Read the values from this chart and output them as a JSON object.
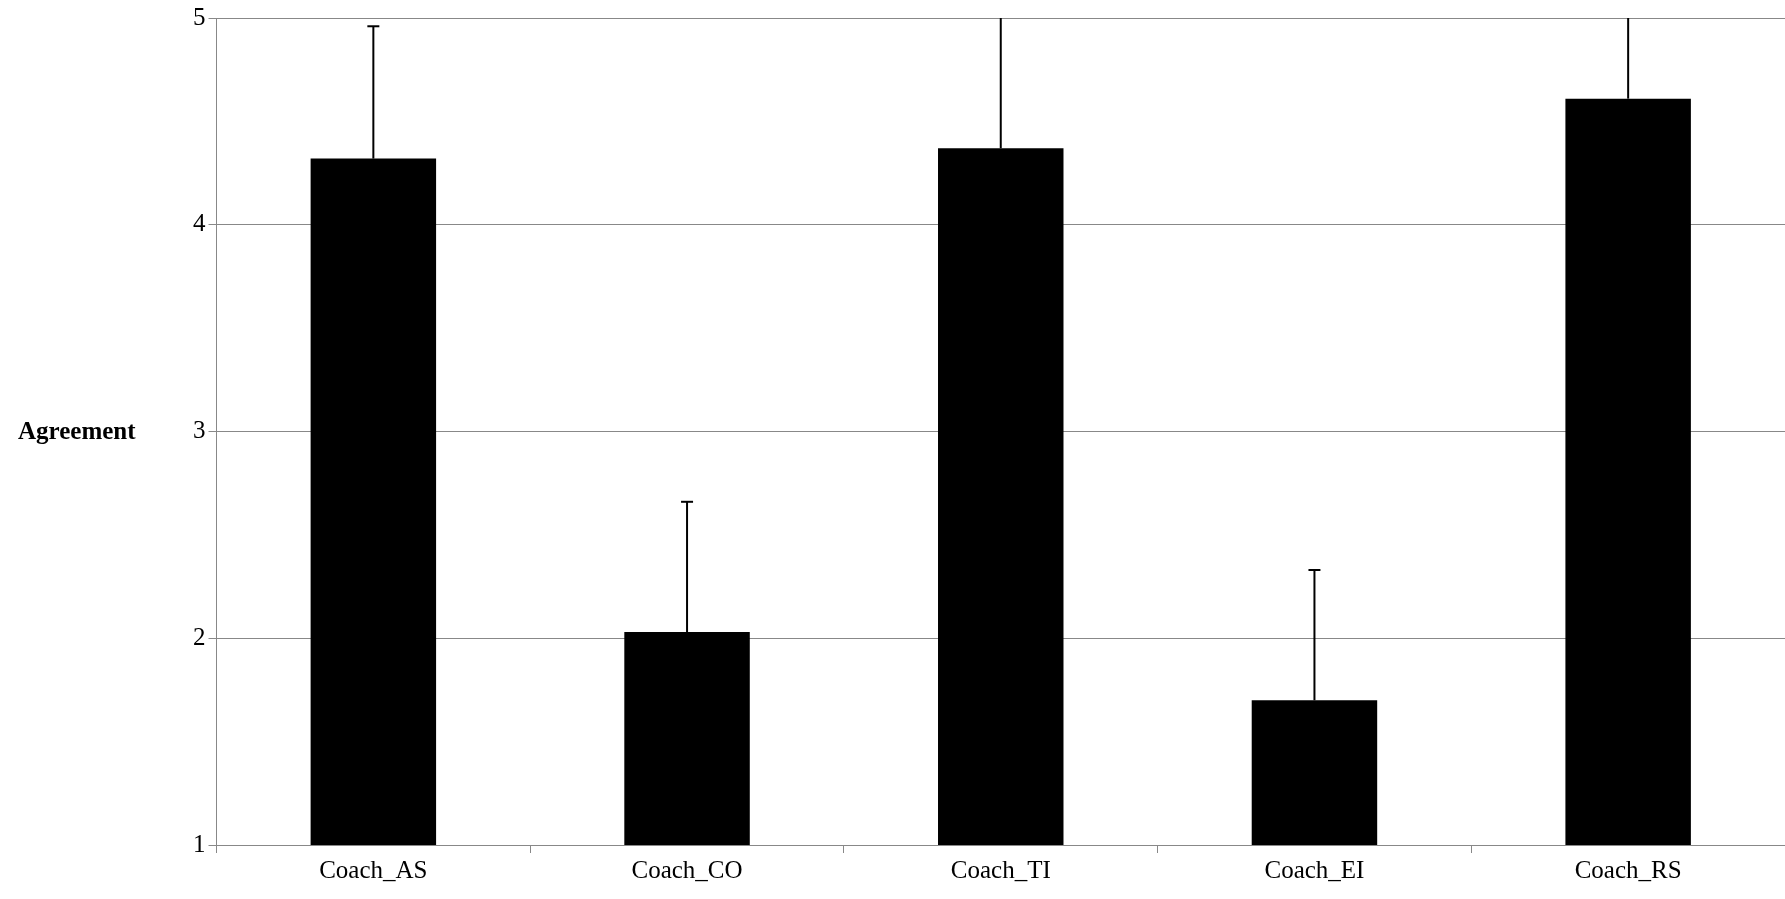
{
  "chart_data": {
    "type": "bar",
    "ylabel": "Agreement",
    "categories": [
      "Coach_AS",
      "Coach_CO",
      "Coach_TI",
      "Coach_EI",
      "Coach_RS"
    ],
    "values": [
      4.32,
      2.03,
      4.37,
      1.7,
      4.61
    ],
    "errors": [
      [
        4.32,
        4.96
      ],
      [
        2.03,
        2.66
      ],
      [
        4.37,
        5
      ],
      [
        1.7,
        2.33
      ],
      [
        4.61,
        5
      ]
    ],
    "color": "#000000",
    "ylim": [
      1,
      5
    ],
    "yticks": [
      1,
      2,
      3,
      4,
      5
    ],
    "grid": "y"
  }
}
